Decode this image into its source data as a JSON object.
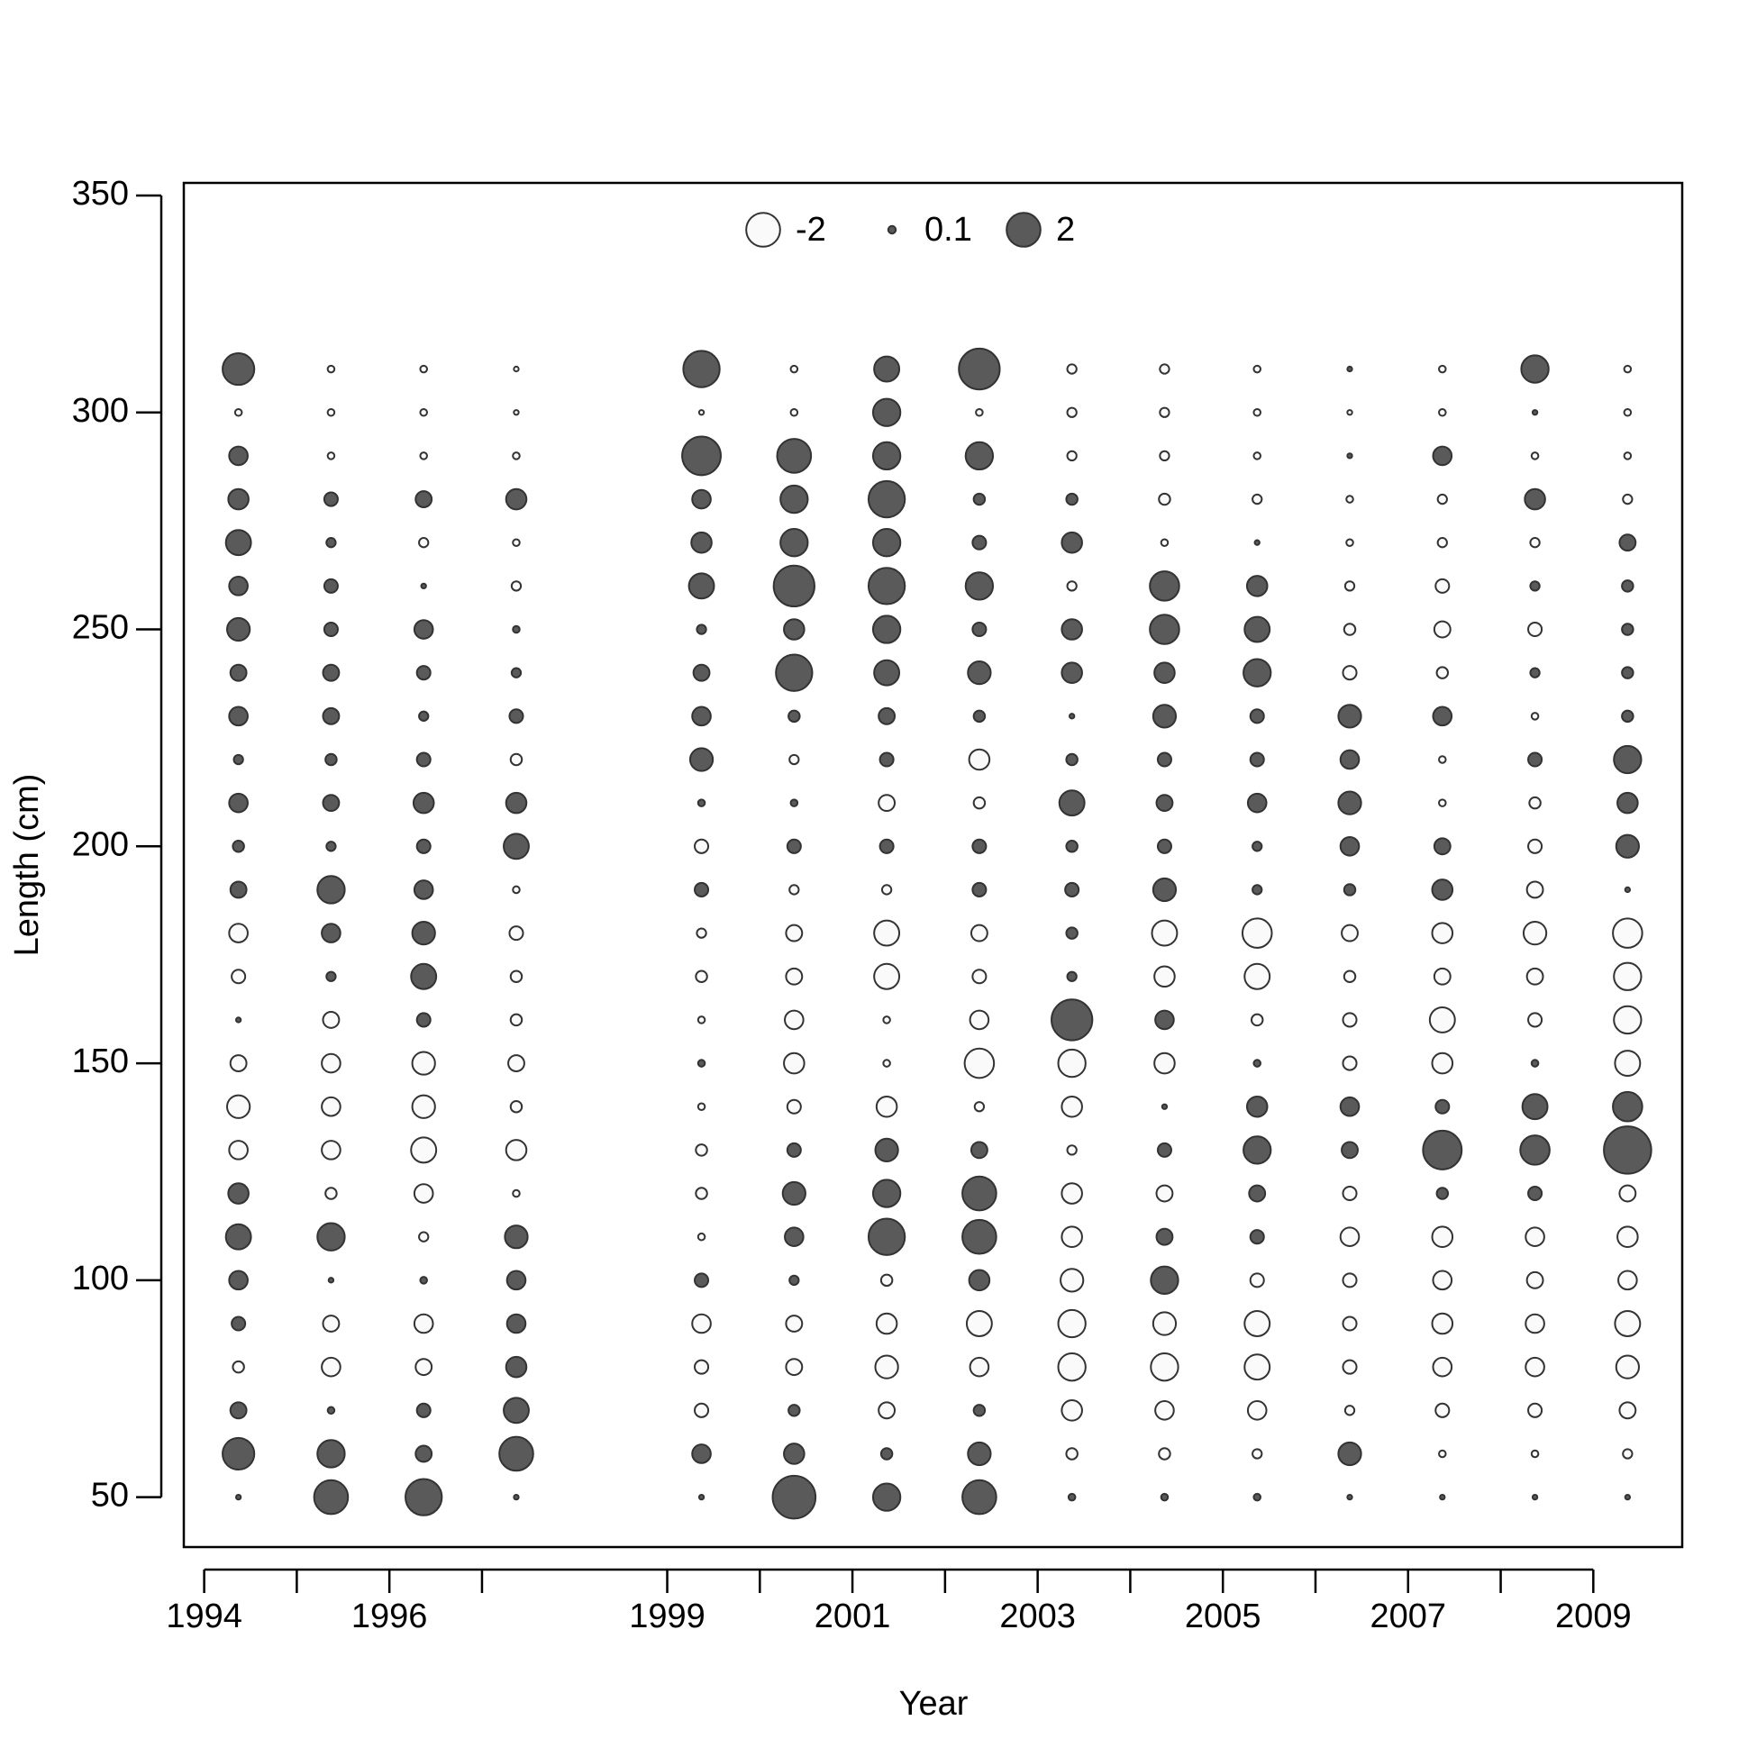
{
  "chart_data": {
    "type": "bubble",
    "xlabel": "Year",
    "ylabel": "Length (cm)",
    "xlim": [
      1993.78,
      2009.96
    ],
    "ylim": [
      38.5,
      352.9
    ],
    "xticks": [
      1994,
      {
        "value": 1995,
        "label": null
      },
      1996,
      {
        "value": 1997,
        "label": null
      },
      1999,
      {
        "value": 2000,
        "label": null
      },
      2001,
      {
        "value": 2002,
        "label": null
      },
      2003,
      {
        "value": 2004,
        "label": null
      },
      2005,
      {
        "value": 2006,
        "label": null
      },
      2007,
      {
        "value": 2008,
        "label": null
      },
      2009
    ],
    "yticks": [
      50,
      100,
      150,
      200,
      250,
      300,
      350
    ],
    "colors": {
      "positive": "#5a5a5a",
      "negative": "#fafafa",
      "edge": "#333333"
    },
    "legend": [
      -2,
      0.1,
      2
    ],
    "x": [
      1994.37,
      1995.37,
      1996.37,
      1997.37,
      1999.37,
      2000.37,
      2001.37,
      2002.37,
      2003.37,
      2004.37,
      2005.37,
      2006.37,
      2007.37,
      2008.37,
      2009.37
    ],
    "y": [
      50,
      60,
      70,
      80,
      90,
      100,
      110,
      120,
      130,
      140,
      150,
      160,
      170,
      180,
      190,
      200,
      210,
      220,
      230,
      240,
      250,
      260,
      270,
      280,
      290,
      300,
      310
    ],
    "values": [
      [
        0.04,
        1.75,
        0.45,
        -0.22,
        0.32,
        0.6,
        1.1,
        0.72,
        -0.6,
        -0.9,
        -0.45,
        0.04,
        -0.32,
        -0.6,
        0.45,
        0.22,
        0.6,
        0.15,
        0.6,
        0.45,
        0.9,
        0.6,
        1.1,
        0.72,
        0.6,
        -0.08,
        1.75
      ],
      [
        2.0,
        1.3,
        0.08,
        -0.6,
        -0.45,
        0.04,
        1.3,
        -0.22,
        -0.6,
        -0.6,
        -0.6,
        -0.45,
        0.15,
        0.6,
        1.3,
        0.15,
        0.45,
        0.22,
        0.45,
        0.45,
        0.32,
        0.32,
        0.15,
        0.32,
        -0.08,
        -0.08,
        -0.08
      ],
      [
        2.3,
        0.45,
        0.32,
        -0.45,
        -0.6,
        0.08,
        -0.15,
        -0.6,
        -1.1,
        -0.9,
        -0.9,
        0.32,
        1.1,
        0.9,
        0.6,
        0.32,
        0.72,
        0.32,
        0.15,
        0.32,
        0.6,
        0.04,
        -0.15,
        0.45,
        -0.08,
        -0.08,
        -0.08
      ],
      [
        0.04,
        2.0,
        1.1,
        0.72,
        0.6,
        0.6,
        0.9,
        -0.08,
        -0.72,
        -0.22,
        -0.45,
        -0.22,
        -0.22,
        -0.32,
        -0.08,
        1.1,
        0.72,
        -0.22,
        0.32,
        0.15,
        0.08,
        -0.15,
        -0.08,
        0.72,
        -0.08,
        -0.04,
        -0.04
      ],
      [
        0.04,
        0.6,
        -0.32,
        -0.32,
        -0.6,
        0.32,
        -0.08,
        -0.22,
        -0.22,
        -0.08,
        0.08,
        -0.08,
        -0.22,
        -0.15,
        0.32,
        -0.32,
        0.08,
        0.9,
        0.6,
        0.45,
        0.15,
        1.1,
        0.72,
        0.6,
        2.6,
        -0.04,
        2.3
      ],
      [
        3.2,
        0.72,
        0.22,
        -0.45,
        -0.45,
        0.15,
        0.6,
        0.9,
        0.32,
        -0.32,
        -0.72,
        -0.6,
        -0.45,
        -0.45,
        -0.15,
        0.32,
        0.08,
        -0.15,
        0.22,
        2.3,
        0.72,
        2.9,
        1.3,
        1.3,
        2.0,
        -0.08,
        -0.08
      ],
      [
        1.3,
        0.22,
        -0.45,
        -0.9,
        -0.72,
        -0.22,
        2.3,
        1.3,
        0.9,
        -0.72,
        -0.08,
        -0.08,
        -1.1,
        -1.1,
        -0.15,
        0.32,
        -0.45,
        0.32,
        0.45,
        1.1,
        1.3,
        2.3,
        1.3,
        2.3,
        1.3,
        1.3,
        1.1
      ],
      [
        2.0,
        0.9,
        0.22,
        -0.6,
        -1.1,
        0.72,
        2.0,
        2.0,
        0.45,
        -0.15,
        -1.5,
        -0.6,
        -0.32,
        -0.45,
        0.32,
        0.32,
        -0.22,
        -0.72,
        0.22,
        0.9,
        0.32,
        1.3,
        0.32,
        0.22,
        1.3,
        -0.08,
        2.9
      ],
      [
        0.08,
        -0.22,
        -0.72,
        -1.3,
        -1.3,
        -0.9,
        -0.72,
        -0.72,
        -0.15,
        -0.72,
        -1.3,
        2.9,
        0.15,
        0.22,
        0.32,
        0.22,
        1.1,
        0.22,
        0.04,
        0.72,
        0.72,
        -0.15,
        0.72,
        0.22,
        -0.15,
        -0.15,
        -0.15
      ],
      [
        0.08,
        -0.22,
        -0.6,
        -1.3,
        -0.9,
        1.3,
        0.45,
        -0.45,
        0.32,
        0.04,
        -0.72,
        0.6,
        -0.72,
        -1.1,
        0.9,
        0.32,
        0.45,
        0.32,
        0.9,
        0.72,
        1.5,
        1.5,
        -0.08,
        -0.22,
        -0.15,
        -0.15,
        -0.15
      ],
      [
        0.08,
        -0.15,
        -0.6,
        -1.1,
        -1.1,
        -0.32,
        0.32,
        0.45,
        1.3,
        0.72,
        0.08,
        -0.22,
        -1.1,
        -1.5,
        0.15,
        0.15,
        0.6,
        0.32,
        0.32,
        1.3,
        1.1,
        0.72,
        0.04,
        -0.15,
        -0.08,
        -0.08,
        -0.08
      ],
      [
        0.04,
        0.9,
        -0.15,
        -0.32,
        -0.32,
        -0.32,
        -0.6,
        -0.32,
        0.45,
        0.6,
        -0.32,
        -0.32,
        -0.22,
        -0.45,
        0.22,
        0.6,
        0.9,
        0.6,
        0.9,
        -0.32,
        -0.22,
        -0.15,
        -0.08,
        -0.08,
        0.04,
        -0.04,
        0.04
      ],
      [
        0.04,
        -0.08,
        -0.32,
        -0.6,
        -0.72,
        -0.6,
        -0.72,
        0.22,
        2.6,
        0.32,
        -0.72,
        -1.1,
        -0.45,
        -0.72,
        0.72,
        0.45,
        -0.08,
        -0.08,
        0.6,
        -0.22,
        -0.45,
        -0.32,
        -0.15,
        -0.15,
        0.6,
        -0.08,
        -0.08
      ],
      [
        0.04,
        -0.08,
        -0.32,
        -0.6,
        -0.6,
        -0.45,
        -0.6,
        0.32,
        1.5,
        1.1,
        0.08,
        -0.32,
        -0.45,
        -0.9,
        -0.45,
        -0.32,
        -0.22,
        0.32,
        -0.08,
        0.15,
        -0.32,
        0.15,
        -0.15,
        0.72,
        -0.08,
        0.04,
        1.3
      ],
      [
        0.04,
        -0.15,
        -0.45,
        -0.9,
        -1.1,
        -0.6,
        -0.72,
        -0.45,
        3.9,
        1.5,
        -1.1,
        -1.3,
        -1.3,
        -1.5,
        0.04,
        0.9,
        0.72,
        1.3,
        0.22,
        0.22,
        0.22,
        0.22,
        0.45,
        -0.15,
        -0.08,
        -0.08,
        -0.08
      ]
    ]
  }
}
